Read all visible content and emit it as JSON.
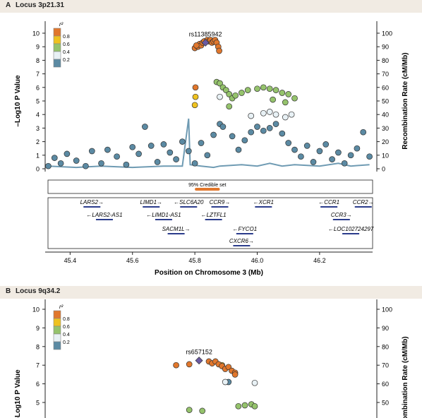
{
  "panels": [
    {
      "letter": "A",
      "locus": "Locus 3p21.31"
    },
    {
      "letter": "B",
      "locus": "Locus 9q34.2"
    }
  ],
  "legend": {
    "title": "r²",
    "levels": [
      "0.8",
      "0.6",
      "0.4",
      "0.2"
    ],
    "colors": [
      "#e1772c",
      "#efc21f",
      "#95c36c",
      "#e8f1f5",
      "#5b8aa3"
    ]
  },
  "credible_set_label": "95% Credible set",
  "chart_data": [
    {
      "type": "scatter",
      "title": "Locus 3p21.31",
      "xlabel": "Position on Chromosome 3 (Mb)",
      "ylabel": "–Log10 P Value",
      "y2label": "Recombination Rate (cM/Mb)",
      "xlim": [
        45.32,
        46.37
      ],
      "ylim": [
        0,
        10
      ],
      "y2lim": [
        0,
        100
      ],
      "xticks": [
        "45.4",
        "45.6",
        "45.8",
        "46.0",
        "46.2"
      ],
      "yticks": [
        "0",
        "1",
        "2",
        "3",
        "4",
        "5",
        "6",
        "7",
        "8",
        "9",
        "10"
      ],
      "y2ticks": [
        "0",
        "10",
        "20",
        "30",
        "40",
        "50",
        "60",
        "70",
        "80",
        "90",
        "100"
      ],
      "lead_snp": {
        "name": "rs11385942",
        "x": 45.834,
        "y": 9.3
      },
      "series": [
        {
          "name": "0.8–1.0",
          "color": "#e1772c",
          "points": [
            [
              45.8,
              8.9
            ],
            [
              45.81,
              9.0
            ],
            [
              45.815,
              9.2
            ],
            [
              45.82,
              9.1
            ],
            [
              45.825,
              9.3
            ],
            [
              45.83,
              9.4
            ],
            [
              45.84,
              9.5
            ],
            [
              45.845,
              9.4
            ],
            [
              45.85,
              9.5
            ],
            [
              45.855,
              9.3
            ],
            [
              45.86,
              9.4
            ],
            [
              45.865,
              9.5
            ],
            [
              45.87,
              9.3
            ],
            [
              45.875,
              9.0
            ],
            [
              45.878,
              8.7
            ],
            [
              45.802,
              6.0
            ],
            [
              45.805,
              9.1
            ]
          ]
        },
        {
          "name": "0.6–0.8",
          "color": "#efc21f",
          "points": [
            [
              45.8,
              4.7
            ],
            [
              45.802,
              5.3
            ]
          ]
        },
        {
          "name": "0.4–0.6",
          "color": "#95c36c",
          "points": [
            [
              45.87,
              6.4
            ],
            [
              45.88,
              6.3
            ],
            [
              45.89,
              6.0
            ],
            [
              45.9,
              5.8
            ],
            [
              45.91,
              5.5
            ],
            [
              45.92,
              5.2
            ],
            [
              45.93,
              5.4
            ],
            [
              45.95,
              5.6
            ],
            [
              45.97,
              5.8
            ],
            [
              46.0,
              5.9
            ],
            [
              46.02,
              6.0
            ],
            [
              46.04,
              5.9
            ],
            [
              46.06,
              5.8
            ],
            [
              46.08,
              5.6
            ],
            [
              46.1,
              5.5
            ],
            [
              46.12,
              5.2
            ],
            [
              45.91,
              4.6
            ],
            [
              46.05,
              5.1
            ],
            [
              46.09,
              4.9
            ]
          ]
        },
        {
          "name": "0.2–0.4",
          "color": "#e8f1f5",
          "points": [
            [
              45.88,
              5.3
            ],
            [
              45.98,
              3.9
            ],
            [
              46.02,
              4.1
            ],
            [
              46.04,
              4.2
            ],
            [
              46.06,
              4.0
            ],
            [
              46.09,
              3.8
            ],
            [
              46.11,
              4.0
            ]
          ]
        },
        {
          "name": "0–0.2",
          "color": "#5b8aa3",
          "points": [
            [
              45.33,
              0.2
            ],
            [
              45.35,
              0.8
            ],
            [
              45.37,
              0.4
            ],
            [
              45.39,
              1.1
            ],
            [
              45.42,
              0.6
            ],
            [
              45.45,
              0.2
            ],
            [
              45.47,
              1.3
            ],
            [
              45.5,
              0.4
            ],
            [
              45.52,
              1.4
            ],
            [
              45.55,
              0.9
            ],
            [
              45.58,
              0.3
            ],
            [
              45.6,
              1.6
            ],
            [
              45.62,
              1.1
            ],
            [
              45.64,
              3.1
            ],
            [
              45.66,
              1.7
            ],
            [
              45.68,
              0.5
            ],
            [
              45.7,
              1.8
            ],
            [
              45.72,
              1.2
            ],
            [
              45.74,
              0.7
            ],
            [
              45.76,
              2.0
            ],
            [
              45.78,
              1.3
            ],
            [
              45.8,
              0.4
            ],
            [
              45.82,
              1.9
            ],
            [
              45.84,
              1.0
            ],
            [
              45.86,
              2.5
            ],
            [
              45.88,
              3.3
            ],
            [
              45.89,
              3.1
            ],
            [
              45.92,
              2.4
            ],
            [
              45.94,
              1.4
            ],
            [
              45.96,
              2.1
            ],
            [
              45.98,
              2.7
            ],
            [
              46.0,
              3.1
            ],
            [
              46.02,
              2.8
            ],
            [
              46.04,
              3.0
            ],
            [
              46.06,
              3.3
            ],
            [
              46.08,
              2.6
            ],
            [
              46.1,
              1.9
            ],
            [
              46.12,
              1.4
            ],
            [
              46.14,
              0.9
            ],
            [
              46.16,
              1.7
            ],
            [
              46.18,
              0.5
            ],
            [
              46.2,
              1.3
            ],
            [
              46.22,
              1.8
            ],
            [
              46.24,
              0.7
            ],
            [
              46.26,
              1.2
            ],
            [
              46.28,
              0.4
            ],
            [
              46.3,
              1.0
            ],
            [
              46.32,
              1.5
            ],
            [
              46.34,
              2.7
            ],
            [
              46.36,
              0.9
            ]
          ]
        }
      ],
      "recombination_rate": [
        [
          45.33,
          2
        ],
        [
          45.42,
          1
        ],
        [
          45.5,
          2
        ],
        [
          45.6,
          1
        ],
        [
          45.7,
          2
        ],
        [
          45.76,
          2
        ],
        [
          45.78,
          37
        ],
        [
          45.785,
          3
        ],
        [
          45.82,
          2
        ],
        [
          45.86,
          1
        ],
        [
          45.88,
          2
        ],
        [
          45.95,
          3
        ],
        [
          46.0,
          2
        ],
        [
          46.04,
          4
        ],
        [
          46.08,
          2
        ],
        [
          46.12,
          3
        ],
        [
          46.2,
          2
        ],
        [
          46.26,
          4
        ],
        [
          46.3,
          2
        ],
        [
          46.36,
          3
        ]
      ],
      "credible_set": {
        "x_from": 45.8,
        "x_to": 45.88
      },
      "genes": [
        {
          "name": "LARS2",
          "dir": "right",
          "x": 45.47,
          "row": 1
        },
        {
          "name": "LIMD1",
          "dir": "right",
          "x": 45.66,
          "row": 1
        },
        {
          "name": "SLC6A20",
          "dir": "left",
          "x": 45.78,
          "row": 1
        },
        {
          "name": "CCR9",
          "dir": "right",
          "x": 45.88,
          "row": 1
        },
        {
          "name": "XCR1",
          "dir": "left",
          "x": 46.02,
          "row": 1
        },
        {
          "name": "CCR1",
          "dir": "left",
          "x": 46.23,
          "row": 1
        },
        {
          "name": "CCR2",
          "dir": "right",
          "x": 46.34,
          "row": 1
        },
        {
          "name": "LARS2-AS1",
          "dir": "left",
          "x": 45.51,
          "row": 2
        },
        {
          "name": "LIMD1-AS1",
          "dir": "left",
          "x": 45.7,
          "row": 2
        },
        {
          "name": "LZTFL1",
          "dir": "left",
          "x": 45.86,
          "row": 2
        },
        {
          "name": "CCR3",
          "dir": "right",
          "x": 46.27,
          "row": 2
        },
        {
          "name": "SACM1L",
          "dir": "right",
          "x": 45.74,
          "row": 3
        },
        {
          "name": "FYCO1",
          "dir": "left",
          "x": 45.96,
          "row": 3
        },
        {
          "name": "LOC102724297",
          "dir": "left",
          "x": 46.3,
          "row": 3
        },
        {
          "name": "CXCR6",
          "dir": "right",
          "x": 45.95,
          "row": 4
        }
      ]
    },
    {
      "type": "scatter",
      "title": "Locus 9q34.2",
      "xlabel": "",
      "ylabel": "–Log10 P Value",
      "y2label": "Recombination Rate (cM/Mb)",
      "ylim": [
        4.5,
        10
      ],
      "y2lim": [
        45,
        100
      ],
      "yticks": [
        "5",
        "6",
        "7",
        "8",
        "9",
        "10"
      ],
      "y2ticks": [
        "50",
        "60",
        "70",
        "80",
        "90",
        "100"
      ],
      "lead_snp": {
        "name": "rs657152",
        "x": 0.47,
        "y": 7.25
      },
      "series": [
        {
          "name": "0.8–1.0",
          "color": "#e1772c",
          "points": [
            [
              0.4,
              7.0
            ],
            [
              0.44,
              7.05
            ],
            [
              0.5,
              7.2
            ],
            [
              0.51,
              7.1
            ],
            [
              0.52,
              7.2
            ],
            [
              0.53,
              7.05
            ],
            [
              0.54,
              6.95
            ],
            [
              0.55,
              6.8
            ],
            [
              0.56,
              6.9
            ],
            [
              0.57,
              6.7
            ],
            [
              0.58,
              6.6
            ],
            [
              0.58,
              6.5
            ]
          ]
        },
        {
          "name": "0.6–0.8",
          "color": "#efc21f",
          "points": [
            [
              0.54,
              7.0
            ]
          ]
        },
        {
          "name": "0.4–0.6",
          "color": "#95c36c",
          "points": [
            [
              0.44,
              4.6
            ],
            [
              0.48,
              4.55
            ],
            [
              0.59,
              4.8
            ],
            [
              0.61,
              4.85
            ],
            [
              0.63,
              4.9
            ],
            [
              0.64,
              4.8
            ]
          ]
        },
        {
          "name": "0.2–0.4",
          "color": "#e8f1f5",
          "points": [
            [
              0.55,
              6.1
            ],
            [
              0.64,
              6.05
            ]
          ]
        },
        {
          "name": "0–0.2",
          "color": "#5b8aa3",
          "points": [
            [
              0.56,
              6.1
            ]
          ]
        }
      ]
    }
  ]
}
